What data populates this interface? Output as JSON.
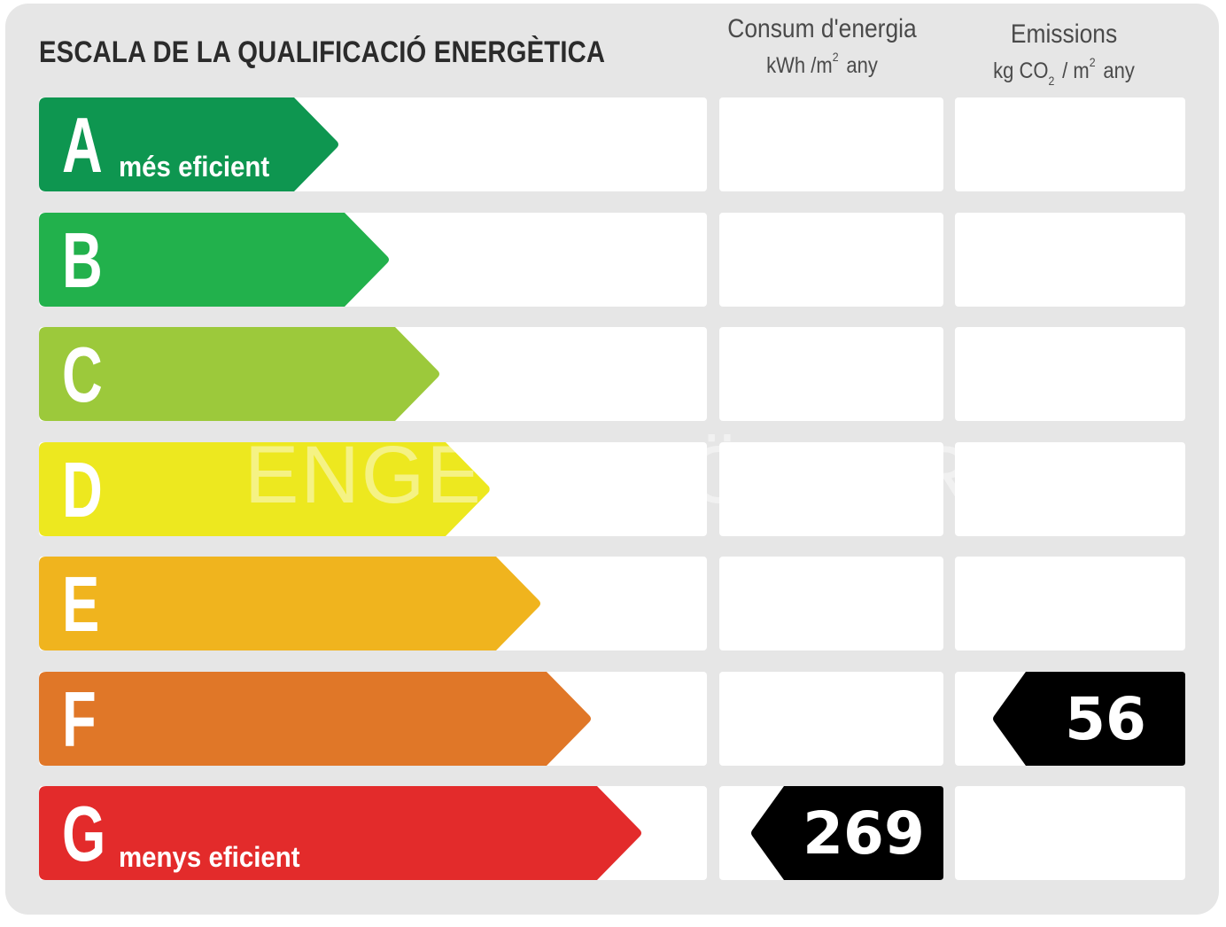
{
  "title": "ESCALA DE LA QUALIFICACIÓ ENERGÈTICA",
  "columns": {
    "consumption": {
      "title": "Consum d'energia",
      "unit_main": "kWh /m",
      "unit_sup": "2",
      "unit_tail": "any"
    },
    "emissions": {
      "title": "Emissions",
      "unit_pre": "kg CO",
      "unit_sub": "2",
      "unit_mid": "/ m",
      "unit_sup": "2",
      "unit_tail": "any"
    }
  },
  "watermark": "ENGEL & VÖLKERS",
  "chart_data": {
    "type": "table",
    "ratings": [
      {
        "letter": "A",
        "label": "més eficient",
        "color": "#0e9650"
      },
      {
        "letter": "B",
        "label": "",
        "color": "#22b14c"
      },
      {
        "letter": "C",
        "label": "",
        "color": "#9cc93b"
      },
      {
        "letter": "D",
        "label": "",
        "color": "#ede81f"
      },
      {
        "letter": "E",
        "label": "",
        "color": "#f0b41e"
      },
      {
        "letter": "F",
        "label": "",
        "color": "#e07728"
      },
      {
        "letter": "G",
        "label": "menys eficient",
        "color": "#e32b2b"
      }
    ],
    "consumption": {
      "value": "269",
      "rating": "G"
    },
    "emissions": {
      "value": "56",
      "rating": "F"
    },
    "indicator_color": "#000000"
  }
}
